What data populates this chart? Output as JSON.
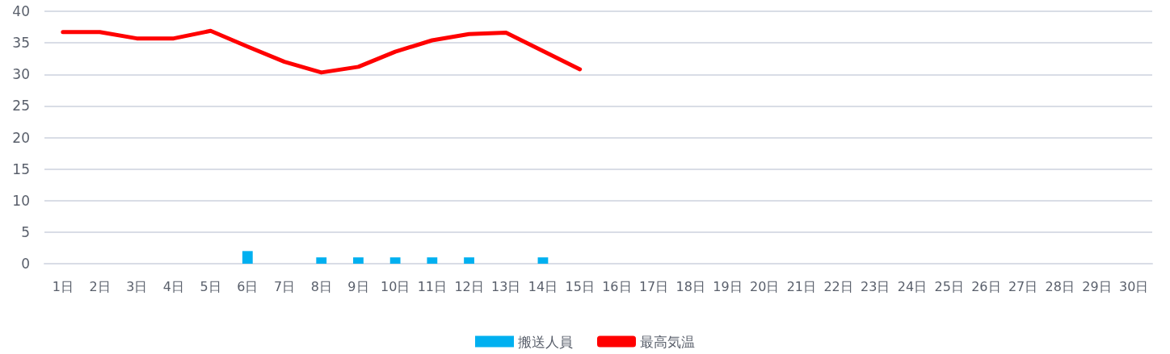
{
  "chart_data": {
    "type": "bar",
    "categories": [
      "1日",
      "2日",
      "3日",
      "4日",
      "5日",
      "6日",
      "7日",
      "8日",
      "9日",
      "10日",
      "11日",
      "12日",
      "13日",
      "14日",
      "15日",
      "16日",
      "17日",
      "18日",
      "19日",
      "20日",
      "21日",
      "22日",
      "23日",
      "24日",
      "25日",
      "26日",
      "27日",
      "28日",
      "29日",
      "30日"
    ],
    "series": [
      {
        "name": "搬送人員",
        "color": "#00b0f0",
        "values": [
          0,
          0,
          0,
          0,
          0,
          2,
          0,
          1,
          1,
          1,
          1,
          1,
          0,
          1,
          0,
          null,
          null,
          null,
          null,
          null,
          null,
          null,
          null,
          null,
          null,
          null,
          null,
          null,
          null,
          null
        ]
      },
      {
        "name": "最高気温",
        "type": "line",
        "color": "#ff0000",
        "values": [
          36.7,
          36.7,
          35.7,
          35.7,
          36.9,
          34.4,
          32.0,
          30.3,
          31.2,
          33.6,
          35.4,
          36.4,
          36.6,
          33.7,
          30.8,
          null,
          null,
          null,
          null,
          null,
          null,
          null,
          null,
          null,
          null,
          null,
          null,
          null,
          null,
          null
        ]
      }
    ],
    "ylim": [
      0,
      40
    ],
    "yticks": [
      0,
      5,
      10,
      15,
      20,
      25,
      30,
      35,
      40
    ],
    "grid": "y",
    "legend": "bottom",
    "marker": "none",
    "line_style": "solid"
  }
}
